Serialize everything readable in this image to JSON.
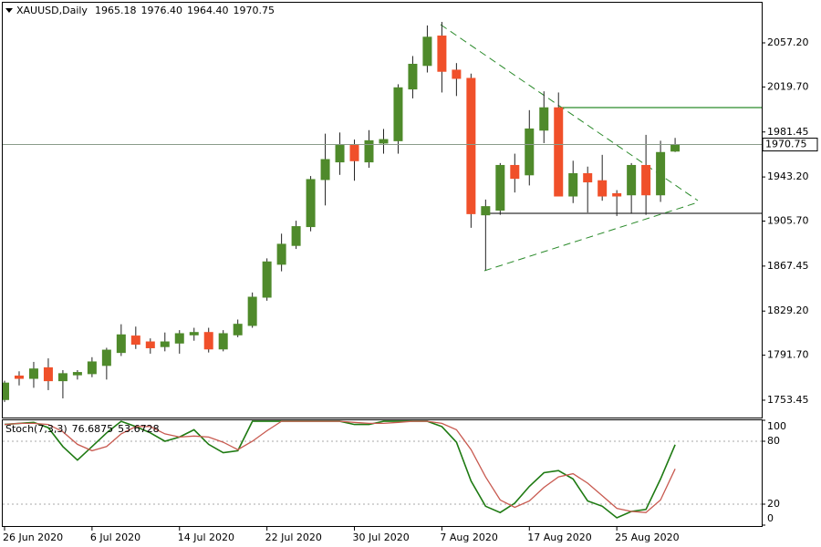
{
  "chart_data": [
    {
      "type": "candlestick",
      "title": "XAUUSD,Daily",
      "last_bar_labels": [
        "1965.18",
        "1976.40",
        "1964.40",
        "1970.75"
      ],
      "categories": [
        "26 Jun 2020",
        null,
        null,
        null,
        null,
        null,
        "6 Jul 2020",
        null,
        null,
        null,
        null,
        null,
        "14 Jul 2020",
        null,
        null,
        null,
        null,
        null,
        "22 Jul 2020",
        null,
        null,
        null,
        null,
        null,
        "30 Jul 2020",
        null,
        null,
        null,
        null,
        null,
        "7 Aug 2020",
        null,
        null,
        null,
        null,
        null,
        "17 Aug 2020",
        null,
        null,
        null,
        null,
        null,
        "25 Aug 2020",
        null,
        null,
        null,
        null
      ],
      "open": [
        1754,
        1774,
        1772,
        1781,
        1770,
        1775,
        1776,
        1783,
        1794,
        1808,
        1803,
        1799,
        1802,
        1809,
        1811,
        1797,
        1809,
        1817,
        1841,
        1869,
        1885,
        1901,
        1941,
        1956,
        1970,
        1956,
        1972,
        1974,
        2018,
        2038,
        2063,
        2034,
        2027,
        1911,
        1915,
        1953,
        1945,
        1983,
        2002,
        1927,
        1946,
        1940,
        1929,
        1928,
        1953,
        1928,
        1965.18
      ],
      "high": [
        1770,
        1778,
        1786,
        1789,
        1779,
        1779,
        1790,
        1798,
        1818,
        1816,
        1806,
        1811,
        1813,
        1815,
        1815,
        1813,
        1822,
        1845,
        1874,
        1895,
        1906,
        1944,
        1980,
        1981,
        1975,
        1983,
        1984,
        2022,
        2046,
        2072,
        2075,
        2040,
        2031,
        1924,
        1955,
        1963,
        2000,
        2016,
        2015,
        1957,
        1952,
        1962,
        1932,
        1955,
        1979,
        1974,
        1976.4
      ],
      "low": [
        1752,
        1766,
        1764,
        1762,
        1755,
        1771,
        1773,
        1771,
        1791,
        1797,
        1793,
        1795,
        1793,
        1804,
        1794,
        1795,
        1807,
        1815,
        1838,
        1863,
        1882,
        1897,
        1919,
        1945,
        1940,
        1951,
        1963,
        1963,
        2010,
        2032,
        2015,
        2012,
        1900,
        1864,
        1911,
        1930,
        1936,
        1972,
        1927,
        1921,
        1913,
        1923,
        1910,
        1912,
        1911,
        1922,
        1964.4
      ],
      "close": [
        1768,
        1772,
        1780,
        1770,
        1776,
        1777,
        1786,
        1796,
        1809,
        1801,
        1798,
        1803,
        1810,
        1811,
        1797,
        1810,
        1818,
        1841,
        1871,
        1886,
        1901,
        1941,
        1958,
        1970,
        1957,
        1974,
        1975,
        2019,
        2039,
        2062,
        2033,
        2027,
        1912,
        1918,
        1953,
        1942,
        1984,
        2002,
        1927,
        1946,
        1939,
        1927,
        1927,
        1953,
        1928,
        1964,
        1970.75
      ],
      "up_color": "#4f8a2b",
      "down_color": "#f0502a",
      "ylim": [
        1738.7,
        2091.3
      ],
      "yticks": [
        {
          "value": 2057.2,
          "label": "2057.20"
        },
        {
          "value": 2019.7,
          "label": "2019.70"
        },
        {
          "value": 1981.45,
          "label": "1981.45"
        },
        {
          "value": 1943.2,
          "label": "1943.20"
        },
        {
          "value": 1905.7,
          "label": "1905.70"
        },
        {
          "value": 1867.45,
          "label": "1867.45"
        },
        {
          "value": 1829.2,
          "label": "1829.20"
        },
        {
          "value": 1791.7,
          "label": "1791.70"
        },
        {
          "value": 1753.45,
          "label": "1753.45"
        }
      ],
      "grid": false
    },
    {
      "type": "line",
      "title": "Stoch(7,3,3)",
      "series": [
        {
          "name": "Main",
          "color": "#1e7a12",
          "values": [
            96,
            97,
            98,
            93,
            75,
            62,
            75,
            88,
            99,
            94,
            88,
            80,
            84,
            91,
            77,
            69,
            71,
            99,
            99,
            99,
            99,
            99,
            99,
            99,
            96,
            96,
            99,
            99,
            99,
            99,
            94,
            79,
            42,
            18,
            12,
            21,
            37,
            50,
            52,
            44,
            23,
            18,
            7,
            13,
            15,
            44,
            76.6875
          ]
        },
        {
          "name": "Signal",
          "color": "#c85a50",
          "values": [
            96,
            97,
            97,
            96,
            89,
            77,
            71,
            75,
            87,
            94,
            94,
            87,
            84,
            85,
            84,
            79,
            72,
            80,
            90,
            99,
            99,
            99,
            99,
            99,
            98,
            97,
            97,
            98,
            99,
            99,
            97,
            91,
            72,
            46,
            24,
            17,
            23,
            36,
            46,
            49,
            40,
            28,
            16,
            13,
            12,
            24,
            53.6728
          ]
        }
      ],
      "ylim": [
        0,
        100
      ],
      "yticks": [
        100,
        80,
        20,
        0
      ],
      "levels": [
        80,
        20
      ]
    }
  ]
}
